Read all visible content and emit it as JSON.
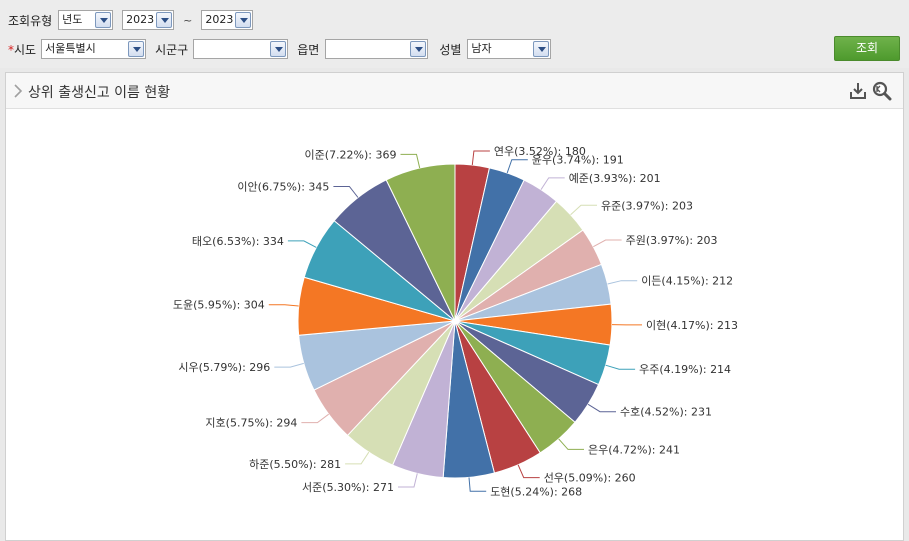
{
  "filters": {
    "period_type_label": "조회유형",
    "period_type_value": "년도",
    "year_from": "2023",
    "tilde": "~",
    "year_to": "2023",
    "sido_label": "시도",
    "sido_required_mark": "*",
    "sido_value": "서울특별시",
    "sigungu_label": "시군구",
    "sigungu_value": "",
    "eupmyeon_label": "읍면",
    "eupmyeon_value": "",
    "gender_label": "성별",
    "gender_value": "남자",
    "search_button": "조회"
  },
  "panel": {
    "title": "상위 출생신고 이름 현황",
    "download_icon": "download-icon",
    "zoom_icon": "zoom-icon"
  },
  "chart_data": {
    "type": "pie",
    "title": "상위 출생신고 이름 현황",
    "slices": [
      {
        "name": "연우",
        "percent": "3.52%",
        "value": 180,
        "color": "#b84142"
      },
      {
        "name": "윤우",
        "percent": "3.74%",
        "value": 191,
        "color": "#4271a8"
      },
      {
        "name": "예준",
        "percent": "3.93%",
        "value": 201,
        "color": "#c1b2d5"
      },
      {
        "name": "유준",
        "percent": "3.97%",
        "value": 203,
        "color": "#d6dfb5"
      },
      {
        "name": "주원",
        "percent": "3.97%",
        "value": 203,
        "color": "#e0b0ae"
      },
      {
        "name": "이든",
        "percent": "4.15%",
        "value": 212,
        "color": "#aac3de"
      },
      {
        "name": "이현",
        "percent": "4.17%",
        "value": 213,
        "color": "#f47724"
      },
      {
        "name": "우주",
        "percent": "4.19%",
        "value": 214,
        "color": "#3da1b9"
      },
      {
        "name": "수호",
        "percent": "4.52%",
        "value": 231,
        "color": "#5c6495"
      },
      {
        "name": "은우",
        "percent": "4.72%",
        "value": 241,
        "color": "#8eaf51"
      },
      {
        "name": "선우",
        "percent": "5.09%",
        "value": 260,
        "color": "#b84142"
      },
      {
        "name": "도현",
        "percent": "5.24%",
        "value": 268,
        "color": "#4271a8"
      },
      {
        "name": "서준",
        "percent": "5.30%",
        "value": 271,
        "color": "#c1b2d5"
      },
      {
        "name": "하준",
        "percent": "5.50%",
        "value": 281,
        "color": "#d6dfb5"
      },
      {
        "name": "지호",
        "percent": "5.75%",
        "value": 294,
        "color": "#e0b0ae"
      },
      {
        "name": "시우",
        "percent": "5.79%",
        "value": 296,
        "color": "#aac3de"
      },
      {
        "name": "도윤",
        "percent": "5.95%",
        "value": 304,
        "color": "#f47724"
      },
      {
        "name": "태오",
        "percent": "6.53%",
        "value": 334,
        "color": "#3da1b9"
      },
      {
        "name": "이안",
        "percent": "6.75%",
        "value": 345,
        "color": "#5c6495"
      },
      {
        "name": "이준",
        "percent": "7.22%",
        "value": 369,
        "color": "#8eaf51"
      }
    ]
  }
}
